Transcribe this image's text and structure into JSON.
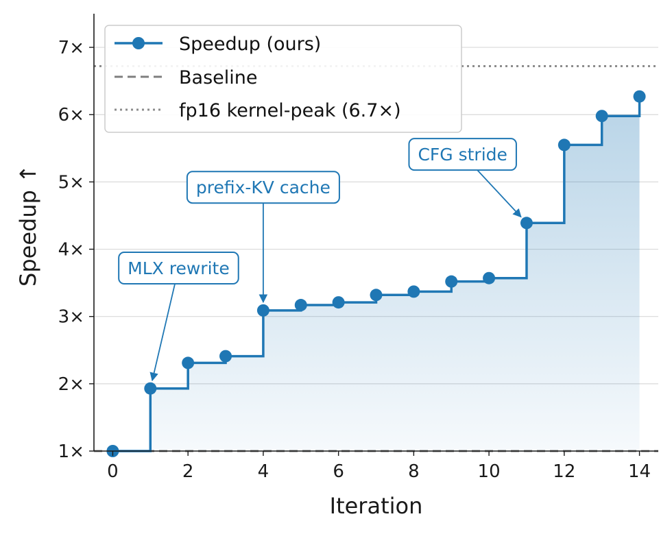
{
  "chart_data": {
    "type": "line",
    "step": "post",
    "xlabel": "Iteration",
    "ylabel": "Speedup ↑",
    "xlim": [
      -0.5,
      14.5
    ],
    "ylim": [
      1.0,
      7.5
    ],
    "x_ticks": [
      0,
      2,
      4,
      6,
      8,
      10,
      12,
      14
    ],
    "y_ticks": [
      1,
      2,
      3,
      4,
      5,
      6,
      7
    ],
    "y_tick_suffix": "×",
    "grid": "y",
    "legend_position": "upper-left",
    "colors": {
      "main": "#1f77b4",
      "baseline": "#7f7f7f",
      "peak": "#8c8c8c",
      "fill": "#1f77b4"
    },
    "series": [
      {
        "name": "Speedup (ours)",
        "style": "step-line-with-markers",
        "x": [
          0,
          1,
          2,
          3,
          4,
          5,
          6,
          7,
          8,
          9,
          10,
          11,
          12,
          13,
          14
        ],
        "values": [
          1.0,
          1.93,
          2.31,
          2.41,
          3.09,
          3.17,
          3.21,
          3.32,
          3.37,
          3.52,
          3.57,
          4.39,
          5.55,
          5.98,
          6.27
        ]
      },
      {
        "name": "Baseline",
        "style": "dashed",
        "value": 1.0
      },
      {
        "name": "fp16 kernel-peak (6.7×)",
        "style": "dotted",
        "value": 6.72
      }
    ],
    "annotations": [
      {
        "text": "MLX rewrite",
        "x": 1,
        "y": 1.93,
        "text_x": 1.75,
        "text_y": 3.72
      },
      {
        "text": "prefix-KV cache",
        "x": 4,
        "y": 3.09,
        "text_x": 4.0,
        "text_y": 4.92
      },
      {
        "text": "CFG stride",
        "x": 11,
        "y": 4.39,
        "text_x": 9.3,
        "text_y": 5.41
      }
    ]
  }
}
